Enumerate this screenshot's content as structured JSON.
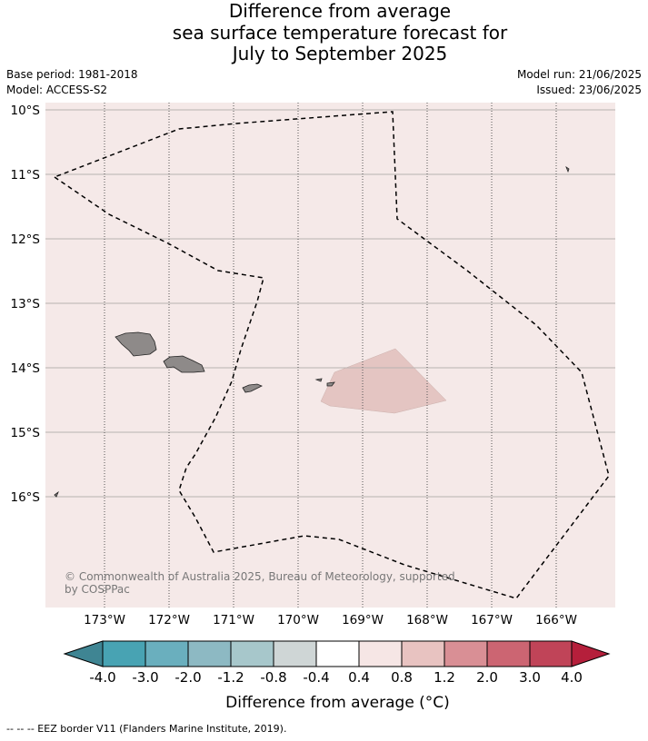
{
  "title": {
    "line1": "Difference from average",
    "line2": "sea surface temperature forecast for",
    "line3": "July to September 2025"
  },
  "meta": {
    "base_period": "Base period: 1981-2018",
    "model": "Model: ACCESS-S2",
    "model_run": "Model run: 21/06/2025",
    "issued": "Issued: 23/06/2025"
  },
  "map": {
    "background_color": "#f5e9e8",
    "lat_labels": [
      "10°S",
      "11°S",
      "12°S",
      "13°S",
      "14°S",
      "15°S",
      "16°S"
    ],
    "lon_labels": [
      "173°W",
      "172°W",
      "171°W",
      "170°W",
      "169°W",
      "168°W",
      "167°W",
      "166°W"
    ],
    "copyright": "© Commonwealth of Australia 2025, Bureau of Meteorology, supported",
    "copyright_line2": "by COSPPac",
    "land_color": "#8e8a89",
    "anomaly_patch_color": "#e4c5c2"
  },
  "colorbar": {
    "colors": [
      "#3f8593",
      "#48a3b3",
      "#6aafbe",
      "#8db9c3",
      "#a7c7cb",
      "#cfd6d6",
      "#ffffff",
      "#f6e6e5",
      "#e8c3c1",
      "#d98f95",
      "#cc6572",
      "#c04458",
      "#b51f3b"
    ],
    "tick_labels": [
      "-4.0",
      "-3.0",
      "-2.0",
      "-1.2",
      "-0.8",
      "-0.4",
      "0.4",
      "0.8",
      "1.2",
      "2.0",
      "3.0",
      "4.0"
    ],
    "label": "Difference from average (°C)"
  },
  "footnote": "--  --  -- EEZ border V11 (Flanders Marine Institute, 2019)."
}
